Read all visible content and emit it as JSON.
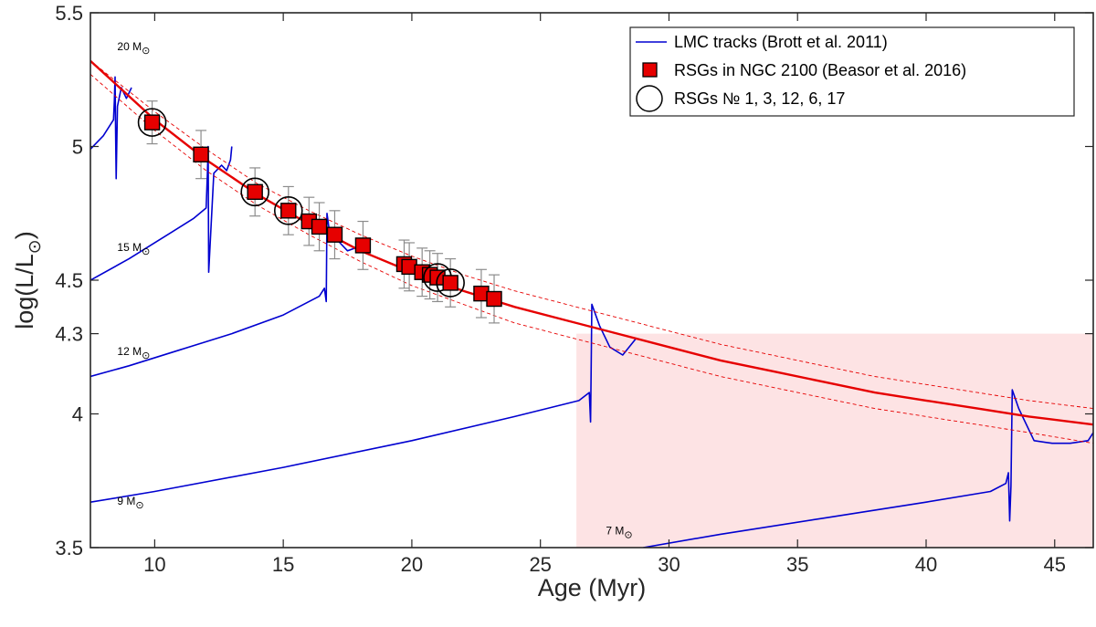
{
  "chart_data": {
    "type": "scatter",
    "xlabel": "Age (Myr)",
    "ylabel_main": "log(L/L",
    "ylabel_sub": "⊙",
    "ylabel_close": ")",
    "xlim": [
      7.5,
      46.5
    ],
    "ylim": [
      3.5,
      5.5
    ],
    "xticks": [
      10,
      15,
      20,
      25,
      30,
      35,
      40,
      45
    ],
    "yticks": [
      3.5,
      4,
      4.3,
      4.5,
      5,
      5.5
    ],
    "shaded_region": {
      "x": [
        26.4,
        46.5
      ],
      "y": [
        3.5,
        4.3
      ],
      "color": "#fde3e4"
    },
    "colors": {
      "track": "#0000d0",
      "fit": "#e60000",
      "marker": "#e60000",
      "errorbar": "#8c8c8c",
      "ring": "#000000"
    },
    "mass_labels": [
      {
        "text": "20 M",
        "sub": "⊙",
        "x": 8.9,
        "y": 5.36
      },
      {
        "text": "15 M",
        "sub": "⊙",
        "x": 8.9,
        "y": 4.61
      },
      {
        "text": "12 M",
        "sub": "⊙",
        "x": 8.9,
        "y": 4.22
      },
      {
        "text": "9 M",
        "sub": "⊙",
        "x": 8.9,
        "y": 3.66
      },
      {
        "text": "7 M",
        "sub": "⊙",
        "x": 27.9,
        "y": 3.55
      }
    ],
    "tracks": [
      {
        "name": "20 Msun",
        "x": [
          7.5,
          8.0,
          8.4,
          8.43,
          8.46,
          8.48,
          8.5,
          8.55,
          8.7,
          8.9,
          9.1
        ],
        "y": [
          4.99,
          5.04,
          5.1,
          5.17,
          5.26,
          5.05,
          4.88,
          5.15,
          5.22,
          5.18,
          5.22
        ]
      },
      {
        "name": "15 Msun",
        "x": [
          7.5,
          9.0,
          10.5,
          11.5,
          12.0,
          12.05,
          12.08,
          12.1,
          12.3,
          12.6,
          12.8,
          12.95,
          13.0
        ],
        "y": [
          4.5,
          4.58,
          4.67,
          4.73,
          4.77,
          4.9,
          5.0,
          4.53,
          4.9,
          4.93,
          4.91,
          4.95,
          5.0
        ]
      },
      {
        "name": "12 Msun",
        "x": [
          7.5,
          9.0,
          11.0,
          13.0,
          15.0,
          16.4,
          16.6,
          16.67,
          16.7,
          16.8,
          17.1,
          17.5,
          17.8,
          18.0
        ],
        "y": [
          4.14,
          4.18,
          4.24,
          4.3,
          4.37,
          4.44,
          4.47,
          4.42,
          4.75,
          4.68,
          4.65,
          4.61,
          4.62,
          4.65
        ]
      },
      {
        "name": "9 Msun",
        "x": [
          7.5,
          10.0,
          15.0,
          20.0,
          24.0,
          26.5,
          26.9,
          26.95,
          26.97,
          27.0,
          27.3,
          27.7,
          28.2,
          28.7
        ],
        "y": [
          3.67,
          3.71,
          3.8,
          3.9,
          3.99,
          4.05,
          4.08,
          3.97,
          4.15,
          4.41,
          4.33,
          4.25,
          4.22,
          4.28
        ]
      },
      {
        "name": "7 Msun",
        "x": [
          29.0,
          32.0,
          36.0,
          40.0,
          42.5,
          43.1,
          43.2,
          43.25,
          43.3,
          43.35,
          43.6,
          44.2,
          44.9,
          45.6,
          46.3,
          46.5
        ],
        "y": [
          3.5,
          3.55,
          3.61,
          3.67,
          3.71,
          3.74,
          3.78,
          3.6,
          3.73,
          4.09,
          4.02,
          3.9,
          3.89,
          3.89,
          3.9,
          3.93
        ]
      }
    ],
    "fit": {
      "x": [
        7.5,
        10,
        12,
        14,
        16,
        18,
        20,
        22,
        24,
        26,
        28,
        30,
        32,
        34,
        36,
        38,
        40,
        42,
        44,
        46.5
      ],
      "y": [
        5.32,
        5.1,
        4.95,
        4.82,
        4.71,
        4.61,
        4.53,
        4.46,
        4.4,
        4.35,
        4.3,
        4.25,
        4.2,
        4.16,
        4.12,
        4.08,
        4.05,
        4.02,
        3.99,
        3.96
      ]
    },
    "fit_upper": {
      "x": [
        7.5,
        10,
        12,
        14,
        16,
        18,
        20,
        22,
        24,
        26,
        28,
        30,
        32,
        34,
        36,
        38,
        40,
        42,
        44,
        46.5
      ],
      "y": [
        5.32,
        5.13,
        4.99,
        4.86,
        4.76,
        4.67,
        4.59,
        4.52,
        4.46,
        4.41,
        4.36,
        4.31,
        4.26,
        4.22,
        4.18,
        4.14,
        4.11,
        4.08,
        4.05,
        4.02
      ]
    },
    "fit_lower": {
      "x": [
        7.5,
        10,
        12,
        14,
        16,
        18,
        20,
        22,
        24,
        26,
        28,
        30,
        32,
        34,
        36,
        38,
        40,
        42,
        44,
        46.5
      ],
      "y": [
        5.27,
        5.06,
        4.91,
        4.78,
        4.67,
        4.57,
        4.48,
        4.41,
        4.34,
        4.29,
        4.24,
        4.19,
        4.14,
        4.1,
        4.06,
        4.02,
        3.99,
        3.96,
        3.93,
        3.89
      ]
    },
    "points": [
      {
        "x": 9.9,
        "y": 5.09,
        "err": 0.08,
        "circled": true
      },
      {
        "x": 11.8,
        "y": 4.97,
        "err": 0.09,
        "circled": false
      },
      {
        "x": 13.9,
        "y": 4.83,
        "err": 0.09,
        "circled": true
      },
      {
        "x": 15.2,
        "y": 4.76,
        "err": 0.09,
        "circled": true
      },
      {
        "x": 16.0,
        "y": 4.72,
        "err": 0.09,
        "circled": false
      },
      {
        "x": 16.4,
        "y": 4.7,
        "err": 0.09,
        "circled": false
      },
      {
        "x": 17.0,
        "y": 4.67,
        "err": 0.09,
        "circled": false
      },
      {
        "x": 18.1,
        "y": 4.63,
        "err": 0.09,
        "circled": false
      },
      {
        "x": 19.7,
        "y": 4.56,
        "err": 0.09,
        "circled": false
      },
      {
        "x": 19.9,
        "y": 4.55,
        "err": 0.09,
        "circled": false
      },
      {
        "x": 20.4,
        "y": 4.53,
        "err": 0.09,
        "circled": false
      },
      {
        "x": 20.7,
        "y": 4.52,
        "err": 0.09,
        "circled": false
      },
      {
        "x": 21.0,
        "y": 4.51,
        "err": 0.09,
        "circled": true
      },
      {
        "x": 21.5,
        "y": 4.49,
        "err": 0.09,
        "circled": true
      },
      {
        "x": 22.7,
        "y": 4.45,
        "err": 0.09,
        "circled": false
      },
      {
        "x": 23.2,
        "y": 4.43,
        "err": 0.09,
        "circled": false
      }
    ],
    "legend": {
      "position": "top-right",
      "entries": [
        {
          "label": "LMC tracks (Brott et al. 2011)",
          "kind": "line"
        },
        {
          "label": "RSGs in NGC 2100 (Beasor et al. 2016)",
          "kind": "square"
        },
        {
          "label": "RSGs № 1, 3, 12, 6, 17",
          "kind": "circle"
        }
      ]
    }
  }
}
